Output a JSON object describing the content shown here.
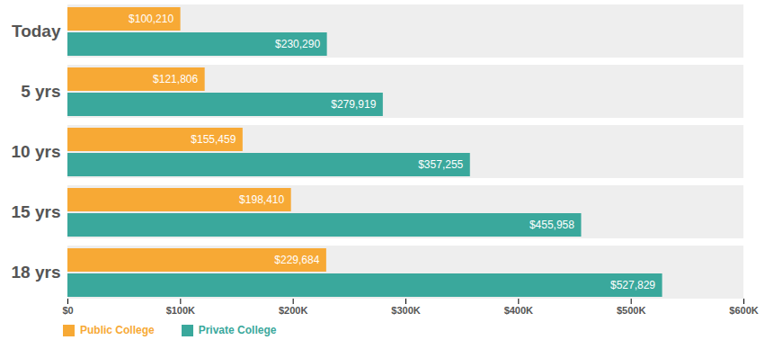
{
  "chart_data": {
    "type": "bar",
    "orientation": "horizontal",
    "data_labels": true,
    "grid": false,
    "legend": "bottom",
    "categories": [
      "Today",
      "5 yrs",
      "10 yrs",
      "15 yrs",
      "18 yrs"
    ],
    "series": [
      {
        "name": "Public College",
        "color": "#f7a935",
        "values": [
          100210,
          121806,
          155459,
          198410,
          229684
        ],
        "value_labels": [
          "$100,210",
          "$121,806",
          "$155,459",
          "$198,410",
          "$229,684"
        ]
      },
      {
        "name": "Private College",
        "color": "#3aa89c",
        "values": [
          230290,
          279919,
          357255,
          455958,
          527829
        ],
        "value_labels": [
          "$230,290",
          "$279,919",
          "$357,255",
          "$455,958",
          "$527,829"
        ]
      }
    ],
    "xlim": [
      0,
      600000
    ],
    "xticks": [
      {
        "value": 0,
        "label": "$0"
      },
      {
        "value": 100000,
        "label": "$100K"
      },
      {
        "value": 200000,
        "label": "$200K"
      },
      {
        "value": 300000,
        "label": "$300K"
      },
      {
        "value": 400000,
        "label": "$400K"
      },
      {
        "value": 500000,
        "label": "$500K"
      },
      {
        "value": 600000,
        "label": "$600K"
      }
    ]
  }
}
